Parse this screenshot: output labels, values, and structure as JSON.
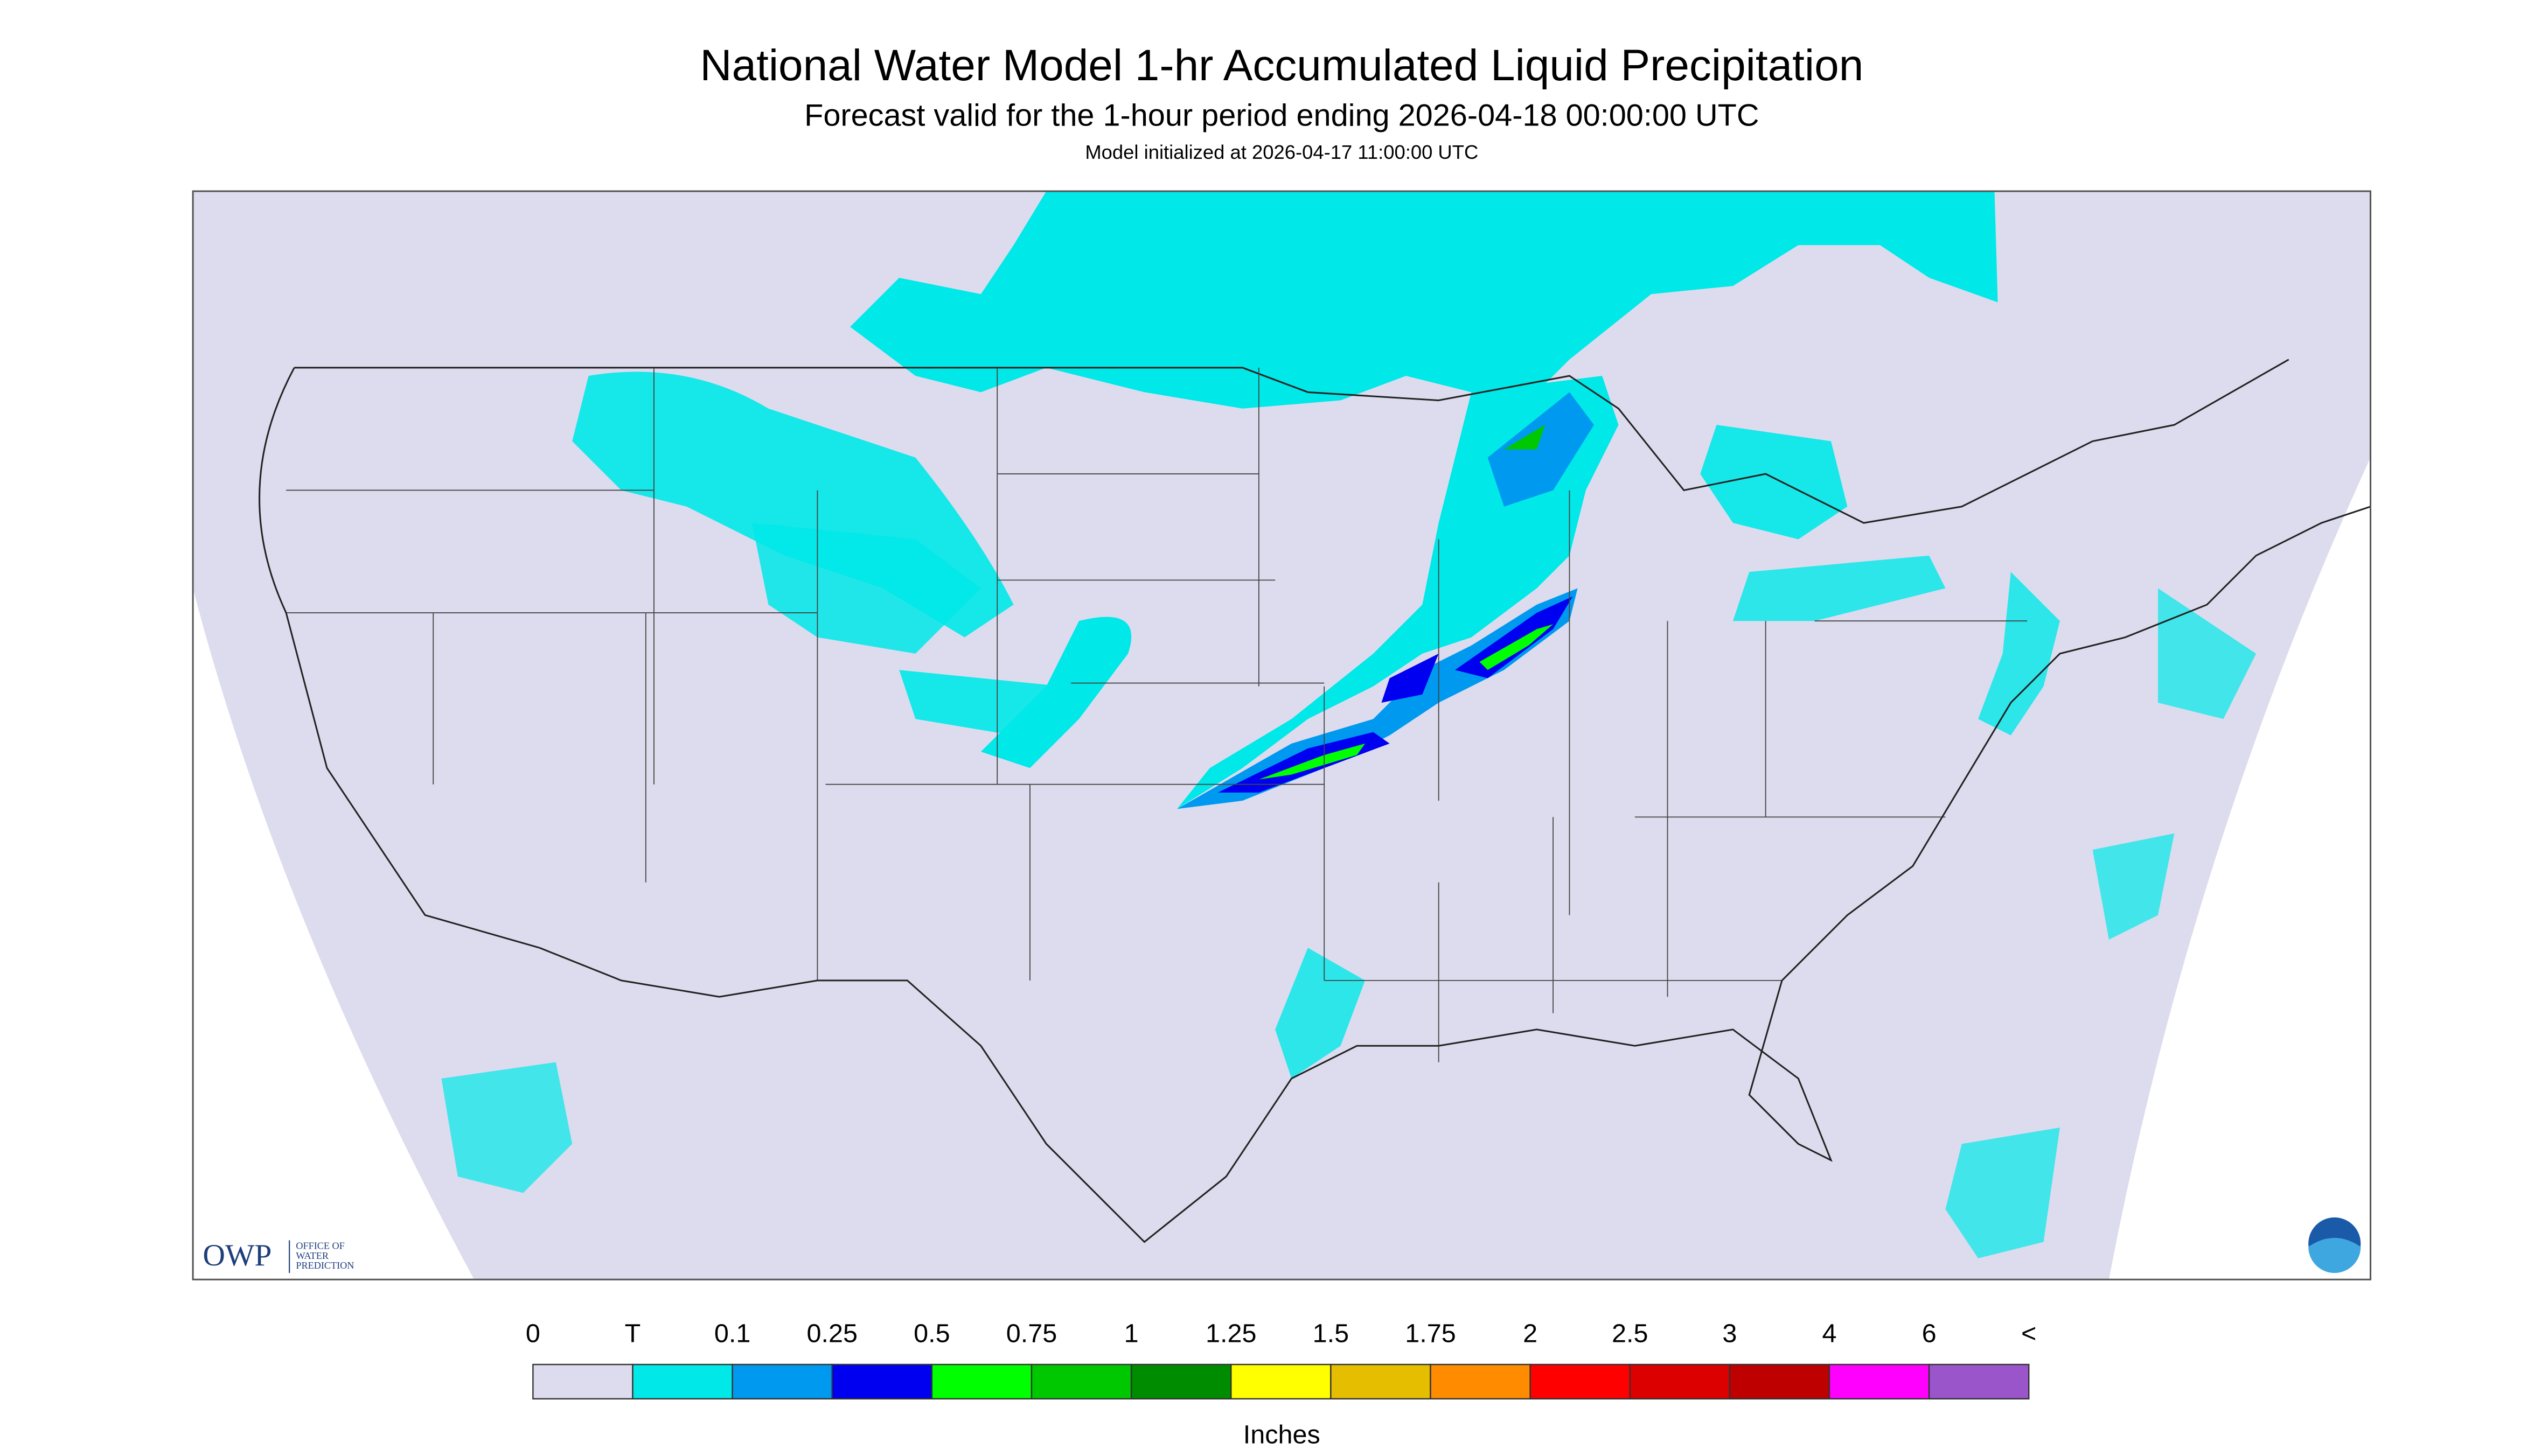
{
  "header": {
    "title": "National Water Model 1-hr Accumulated Liquid Precipitation",
    "subtitle": "Forecast valid for the 1-hour period ending 2026-04-18 00:00:00 UTC",
    "note": "Model initialized at 2026-04-17 11:00:00 UTC"
  },
  "logo": {
    "acronym": "OWP",
    "lines": [
      "OFFICE OF",
      "WATER",
      "PREDICTION"
    ]
  },
  "legend": {
    "labels": [
      "0",
      "T",
      "0.1",
      "0.25",
      "0.5",
      "0.75",
      "1",
      "1.25",
      "1.5",
      "1.75",
      "2",
      "2.5",
      "3",
      "4",
      "6",
      "<"
    ],
    "colors": [
      "#dcdcee",
      "#00e8e8",
      "#0099f0",
      "#0000f0",
      "#00ff00",
      "#00c800",
      "#008c00",
      "#ffff00",
      "#e6be00",
      "#ff8c00",
      "#ff0000",
      "#dc0000",
      "#be0000",
      "#ff00ff",
      "#9955c9"
    ],
    "unit": "Inches"
  }
}
